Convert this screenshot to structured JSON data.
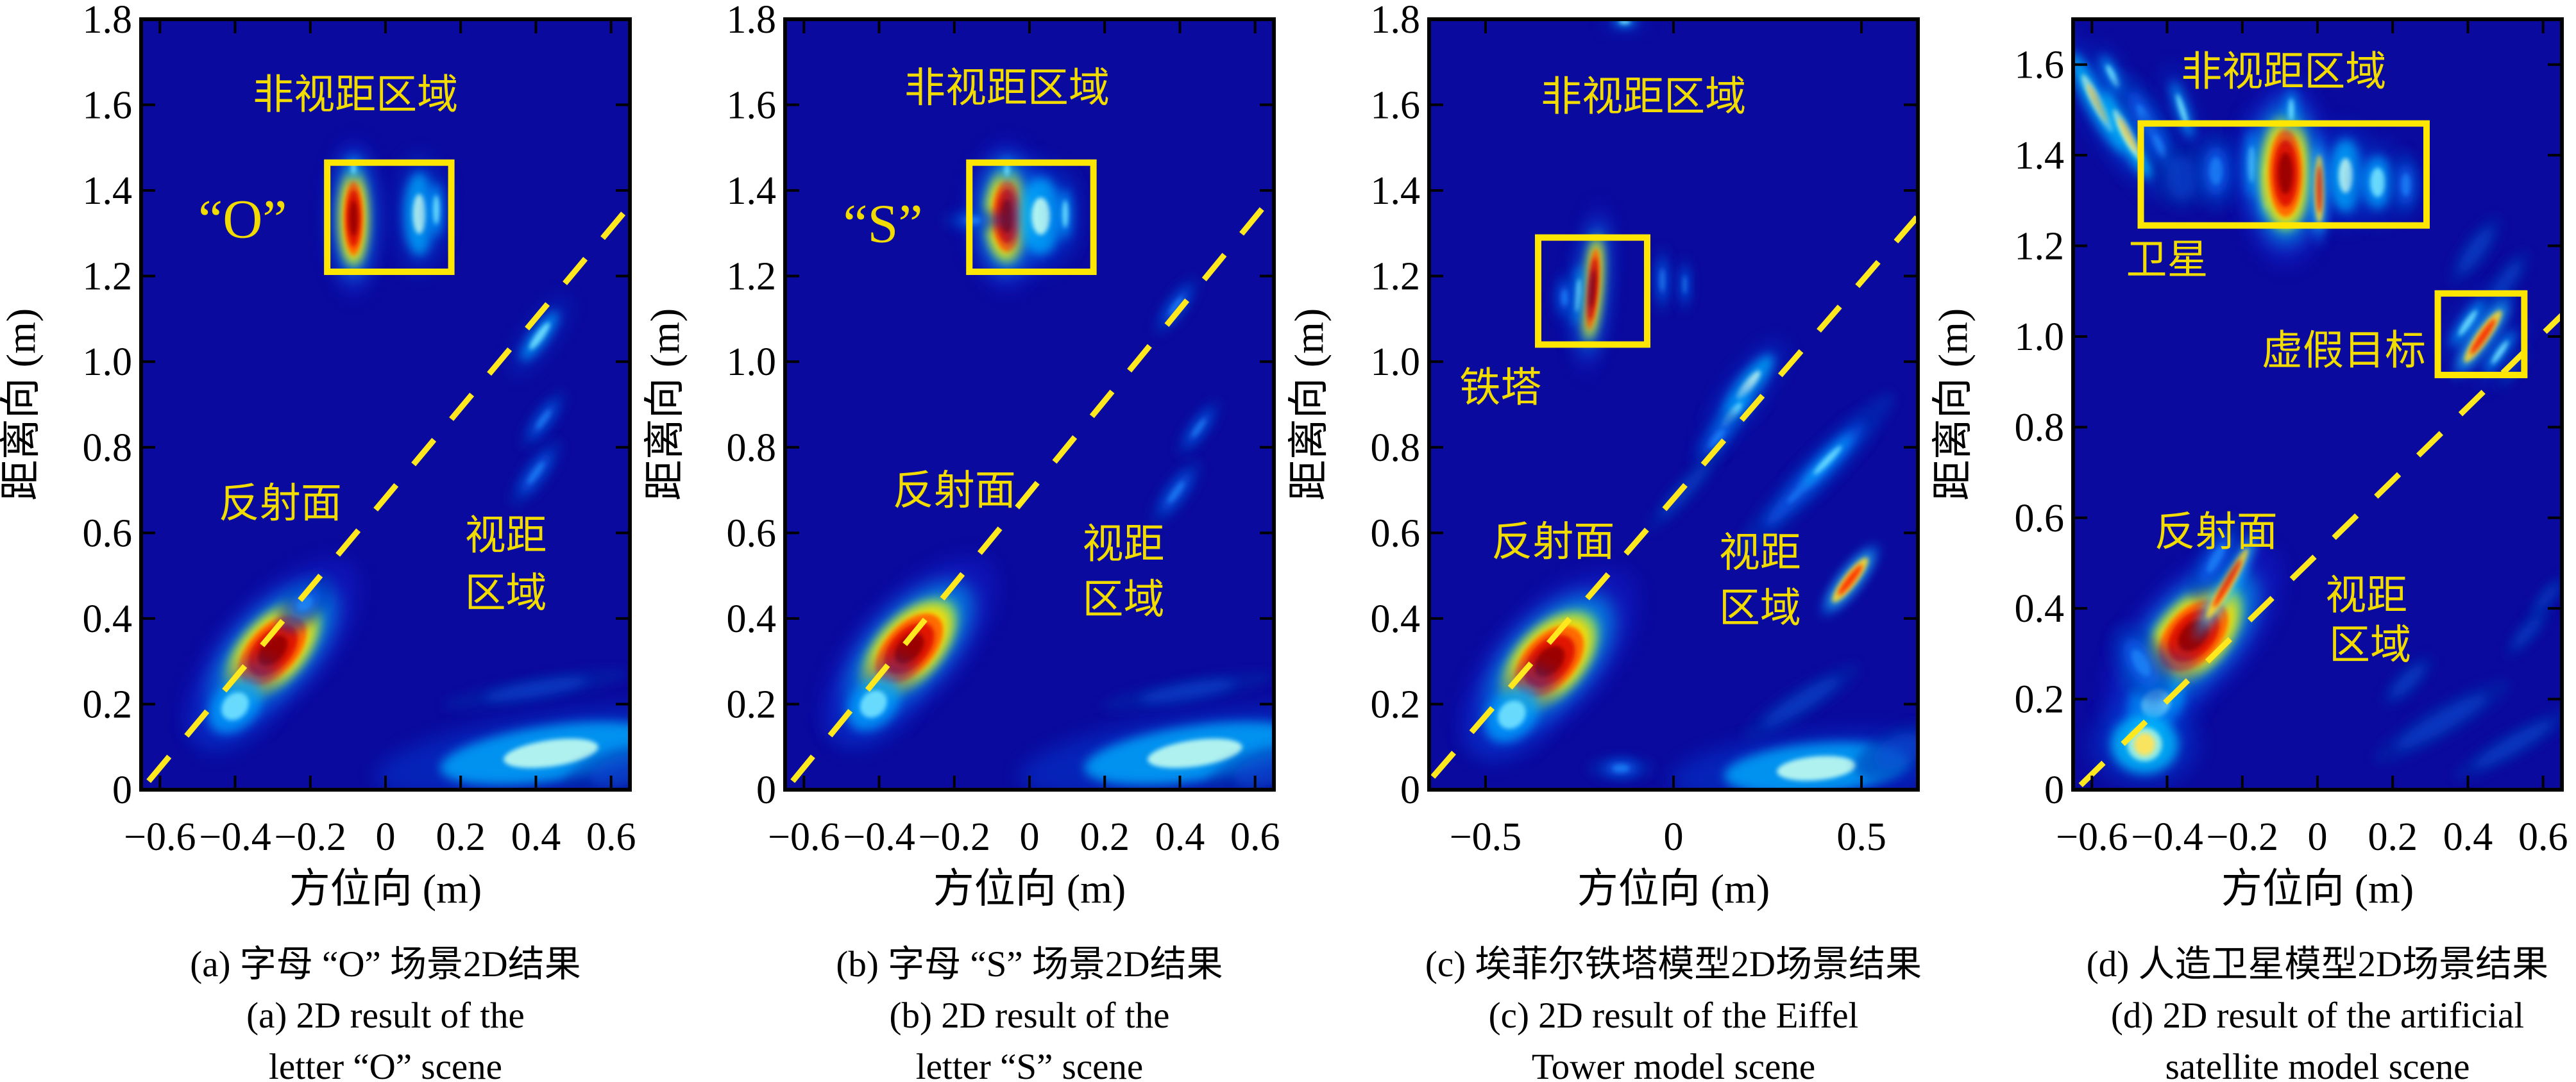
{
  "chart_data": {
    "type": "heatmap",
    "colormap": "jet",
    "title": "",
    "xlabel": "方位向 (m)",
    "ylabel": "距离向 (m)",
    "grid": false,
    "legend": false,
    "background_color": "#0A0A9E",
    "annotation_color": "#F2DC00",
    "line_color": "#FFE81E",
    "box_color": "#FFE600",
    "panels": [
      {
        "id": "a",
        "caption_zh": "(a) 字母 “O” 场景2D结果",
        "caption_en": [
          "(a) 2D result of the",
          "letter “O” scene"
        ],
        "xlim": [
          -0.65,
          0.65
        ],
        "ylim": [
          0,
          1.8
        ],
        "x_ticks": [
          -0.6,
          -0.4,
          -0.2,
          0,
          0.2,
          0.4,
          0.6
        ],
        "x_tick_labels": [
          "−0.6",
          "−0.4",
          "−0.2",
          "0",
          "0.2",
          "0.4",
          "0.6"
        ],
        "y_ticks": [
          0,
          0.2,
          0.4,
          0.6,
          0.8,
          1.0,
          1.2,
          1.4,
          1.6,
          1.8
        ],
        "y_tick_labels": [
          "0",
          "0.2",
          "0.4",
          "0.6",
          "0.8",
          "1.0",
          "1.2",
          "1.4",
          "1.6",
          "1.8"
        ],
        "reflector_line": {
          "x1": -0.63,
          "y1": 0.02,
          "x2": 0.655,
          "y2": 1.37
        },
        "target_boxes": [
          {
            "x": -0.155,
            "y": 1.21,
            "w": 0.33,
            "h": 0.255
          }
        ],
        "labels": [
          {
            "text": "非视距区域",
            "x": -0.08,
            "y": 1.625,
            "size": 64
          },
          {
            "text": "“O”",
            "x": -0.38,
            "y": 1.335,
            "size": 86
          },
          {
            "text": "反射面",
            "x": -0.28,
            "y": 0.67,
            "size": 64
          },
          {
            "text": "视距",
            "x": 0.32,
            "y": 0.595,
            "size": 64
          },
          {
            "text": "区域",
            "x": 0.32,
            "y": 0.46,
            "size": 64
          }
        ],
        "blobs": [
          [
            "hot",
            -0.3,
            0.325,
            0.115,
            0.058,
            -47
          ],
          [
            "cyan",
            -0.4,
            0.195,
            0.07,
            0.046,
            -47
          ],
          [
            "blue",
            -0.215,
            0.435,
            0.048,
            0.028,
            -47
          ],
          [
            "hot",
            -0.085,
            1.335,
            0.026,
            0.09,
            0
          ],
          [
            "lightcyan",
            0.09,
            1.345,
            0.028,
            0.075,
            0
          ],
          [
            "cyan",
            0.135,
            1.355,
            0.014,
            0.055,
            0
          ],
          [
            "cyan",
            -0.085,
            1.452,
            0.011,
            0.024,
            0
          ],
          [
            "cyan",
            0.41,
            1.06,
            0.018,
            0.062,
            36
          ],
          [
            "blue",
            0.42,
            0.865,
            0.016,
            0.05,
            36
          ],
          [
            "blue",
            0.4,
            0.74,
            0.018,
            0.058,
            36
          ],
          [
            "faint",
            0.4,
            0.235,
            0.14,
            0.018,
            -10
          ],
          [
            "lightcyan",
            0.44,
            0.085,
            0.205,
            0.05,
            -8
          ],
          [
            "faint",
            0.63,
            0.045,
            0.09,
            0.034,
            -15
          ]
        ]
      },
      {
        "id": "b",
        "caption_zh": "(b) 字母 “S” 场景2D结果",
        "caption_en": [
          "(b) 2D result of the",
          "letter “S” scene"
        ],
        "xlim": [
          -0.65,
          0.65
        ],
        "ylim": [
          0,
          1.8
        ],
        "x_ticks": [
          -0.6,
          -0.4,
          -0.2,
          0,
          0.2,
          0.4,
          0.6
        ],
        "x_tick_labels": [
          "−0.6",
          "−0.4",
          "−0.2",
          "0",
          "0.2",
          "0.4",
          "0.6"
        ],
        "y_ticks": [
          0,
          0.2,
          0.4,
          0.6,
          0.8,
          1.0,
          1.2,
          1.4,
          1.6,
          1.8
        ],
        "y_tick_labels": [
          "0",
          "0.2",
          "0.4",
          "0.6",
          "0.8",
          "1.0",
          "1.2",
          "1.4",
          "1.6",
          "1.8"
        ],
        "reflector_line": {
          "x1": -0.63,
          "y1": 0.02,
          "x2": 0.64,
          "y2": 1.38
        },
        "target_boxes": [
          {
            "x": -0.16,
            "y": 1.21,
            "w": 0.33,
            "h": 0.255
          }
        ],
        "labels": [
          {
            "text": "非视距区域",
            "x": -0.06,
            "y": 1.64,
            "size": 64
          },
          {
            "text": "“S”",
            "x": -0.39,
            "y": 1.325,
            "size": 86
          },
          {
            "text": "反射面",
            "x": -0.2,
            "y": 0.7,
            "size": 64
          },
          {
            "text": "视距",
            "x": 0.25,
            "y": 0.575,
            "size": 64
          },
          {
            "text": "区域",
            "x": 0.25,
            "y": 0.445,
            "size": 64
          }
        ],
        "blobs": [
          [
            "hot",
            -0.32,
            0.33,
            0.115,
            0.058,
            -47
          ],
          [
            "cyan",
            -0.415,
            0.2,
            0.068,
            0.046,
            -47
          ],
          [
            "hot",
            -0.06,
            1.34,
            0.04,
            0.086,
            0
          ],
          [
            "lightcyan",
            0.03,
            1.34,
            0.04,
            0.07,
            0
          ],
          [
            "cyan",
            0.095,
            1.345,
            0.013,
            0.052,
            0
          ],
          [
            "blue",
            -0.15,
            1.33,
            0.042,
            0.016,
            0
          ],
          [
            "cyan",
            -0.06,
            1.448,
            0.011,
            0.024,
            0
          ],
          [
            "blue",
            0.39,
            1.13,
            0.016,
            0.05,
            36
          ],
          [
            "blue",
            0.45,
            0.845,
            0.015,
            0.048,
            36
          ],
          [
            "blue",
            0.39,
            0.695,
            0.018,
            0.056,
            36
          ],
          [
            "faint",
            0.42,
            0.23,
            0.13,
            0.018,
            -10
          ],
          [
            "lightcyan",
            0.44,
            0.085,
            0.205,
            0.05,
            -8
          ],
          [
            "faint",
            0.63,
            0.045,
            0.09,
            0.034,
            -15
          ]
        ]
      },
      {
        "id": "c",
        "caption_zh": "(c) 埃菲尔铁塔模型2D场景结果",
        "caption_en": [
          "(c) 2D result of the Eiffel",
          "Tower model scene"
        ],
        "xlim": [
          -0.65,
          0.65
        ],
        "ylim": [
          0,
          1.8
        ],
        "x_ticks": [
          -0.5,
          0,
          0.5
        ],
        "x_tick_labels": [
          "−0.5",
          "0",
          "0.5"
        ],
        "y_ticks": [
          0,
          0.2,
          0.4,
          0.6,
          0.8,
          1.0,
          1.2,
          1.4,
          1.6,
          1.8
        ],
        "y_tick_labels": [
          "0",
          "0.2",
          "0.4",
          "0.6",
          "0.8",
          "1.0",
          "1.2",
          "1.4",
          "1.6",
          "1.8"
        ],
        "reflector_line": {
          "x1": -0.64,
          "y1": 0.03,
          "x2": 0.66,
          "y2": 1.35
        },
        "target_boxes": [
          {
            "x": -0.36,
            "y": 1.04,
            "w": 0.29,
            "h": 0.25
          }
        ],
        "labels": [
          {
            "text": "非视距区域",
            "x": -0.08,
            "y": 1.62,
            "size": 64
          },
          {
            "text": "铁塔",
            "x": -0.46,
            "y": 0.94,
            "size": 64
          },
          {
            "text": "反射面",
            "x": -0.32,
            "y": 0.58,
            "size": 64
          },
          {
            "text": "视距",
            "x": 0.23,
            "y": 0.555,
            "size": 64
          },
          {
            "text": "区域",
            "x": 0.23,
            "y": 0.425,
            "size": 64
          }
        ],
        "blobs": [
          [
            "hot",
            -0.33,
            0.3,
            0.115,
            0.062,
            -47
          ],
          [
            "cyan",
            -0.43,
            0.175,
            0.07,
            0.048,
            -47
          ],
          [
            "hot",
            -0.215,
            1.17,
            0.016,
            0.098,
            5
          ],
          [
            "cyan",
            -0.255,
            1.155,
            0.012,
            0.062,
            5
          ],
          [
            "blue",
            -0.29,
            1.15,
            0.016,
            0.036,
            0
          ],
          [
            "blue",
            -0.03,
            1.19,
            0.013,
            0.048,
            0
          ],
          [
            "blue",
            0.03,
            1.18,
            0.01,
            0.04,
            0
          ],
          [
            "cyan",
            -0.13,
            1.795,
            0.026,
            0.011,
            0
          ],
          [
            "lightcyan",
            0.2,
            0.945,
            0.02,
            0.068,
            38
          ],
          [
            "cyan",
            0.155,
            0.875,
            0.018,
            0.058,
            38
          ],
          [
            "blue",
            0.115,
            0.82,
            0.02,
            0.05,
            38
          ],
          [
            "faint",
            0.03,
            0.7,
            0.016,
            0.085,
            42
          ],
          [
            "blue",
            0.375,
            0.735,
            0.026,
            0.165,
            44
          ],
          [
            "cyan",
            0.41,
            0.77,
            0.014,
            0.075,
            44
          ],
          [
            "warm",
            0.47,
            0.49,
            0.016,
            0.062,
            38
          ],
          [
            "faint",
            0.34,
            0.205,
            0.022,
            0.105,
            58
          ],
          [
            "lightcyan",
            0.38,
            0.05,
            0.17,
            0.045,
            -5
          ],
          [
            "faint",
            0.6,
            0.09,
            0.07,
            0.035,
            -25
          ],
          [
            "blue",
            -0.14,
            0.05,
            0.045,
            0.018,
            0
          ]
        ]
      },
      {
        "id": "d",
        "caption_zh": "(d) 人造卫星模型2D场景结果",
        "caption_en": [
          "(d) 2D result of the artificial",
          "satellite model scene"
        ],
        "xlim": [
          -0.65,
          0.65
        ],
        "ylim": [
          0,
          1.7
        ],
        "x_ticks": [
          -0.6,
          -0.4,
          -0.2,
          0,
          0.2,
          0.4,
          0.6
        ],
        "x_tick_labels": [
          "−0.6",
          "−0.4",
          "−0.2",
          "0",
          "0.2",
          "0.4",
          "0.6"
        ],
        "y_ticks": [
          0,
          0.2,
          0.4,
          0.6,
          0.8,
          1.0,
          1.2,
          1.4,
          1.6
        ],
        "y_tick_labels": [
          "0",
          "0.2",
          "0.4",
          "0.6",
          "0.8",
          "1.0",
          "1.2",
          "1.4",
          "1.6"
        ],
        "reflector_line": {
          "x1": -0.63,
          "y1": 0.01,
          "x2": 0.66,
          "y2": 1.055
        },
        "target_boxes": [
          {
            "x": -0.47,
            "y": 1.245,
            "w": 0.76,
            "h": 0.225
          },
          {
            "x": 0.32,
            "y": 0.915,
            "w": 0.23,
            "h": 0.18
          }
        ],
        "labels": [
          {
            "text": "非视距区域",
            "x": -0.09,
            "y": 1.585,
            "size": 64
          },
          {
            "text": "卫星",
            "x": -0.4,
            "y": 1.17,
            "size": 64
          },
          {
            "text": "虚假目标",
            "x": 0.07,
            "y": 0.97,
            "size": 64
          },
          {
            "text": "反射面",
            "x": -0.27,
            "y": 0.57,
            "size": 64
          },
          {
            "text": "视距",
            "x": 0.13,
            "y": 0.43,
            "size": 64
          },
          {
            "text": "区域",
            "x": 0.14,
            "y": 0.32,
            "size": 64
          }
        ],
        "blobs": [
          [
            "warmcyan",
            -0.585,
            1.515,
            0.02,
            0.095,
            -28
          ],
          [
            "warmcyan",
            -0.505,
            1.445,
            0.02,
            0.085,
            -28
          ],
          [
            "cyan",
            -0.545,
            1.575,
            0.014,
            0.045,
            -28
          ],
          [
            "blue",
            -0.455,
            1.475,
            0.028,
            0.075,
            -28
          ],
          [
            "cyan",
            -0.36,
            1.5,
            0.013,
            0.06,
            -18
          ],
          [
            "blue",
            -0.42,
            1.42,
            0.018,
            0.05,
            -25
          ],
          [
            "faint",
            -0.36,
            1.35,
            0.042,
            0.048,
            0
          ],
          [
            "blue",
            -0.27,
            1.365,
            0.035,
            0.055,
            0
          ],
          [
            "cyan",
            -0.175,
            1.38,
            0.016,
            0.065,
            0
          ],
          [
            "warm",
            -0.135,
            1.33,
            0.01,
            0.048,
            0
          ],
          [
            "hot",
            -0.085,
            1.36,
            0.046,
            0.1,
            0
          ],
          [
            "warm",
            0.005,
            1.325,
            0.012,
            0.072,
            0
          ],
          [
            "lightcyan",
            0.075,
            1.355,
            0.03,
            0.062,
            0
          ],
          [
            "cyan",
            0.16,
            1.34,
            0.034,
            0.052,
            0
          ],
          [
            "blue",
            0.235,
            1.335,
            0.024,
            0.046,
            0
          ],
          [
            "cyan",
            -0.07,
            1.5,
            0.012,
            0.04,
            0
          ],
          [
            "faint",
            0.42,
            1.19,
            0.02,
            0.06,
            35
          ],
          [
            "faint",
            0.5,
            1.12,
            0.018,
            0.055,
            35
          ],
          [
            "cyan",
            0.4,
            1.03,
            0.015,
            0.055,
            35
          ],
          [
            "warm",
            0.44,
            1.0,
            0.016,
            0.066,
            35
          ],
          [
            "cyan",
            0.485,
            0.965,
            0.013,
            0.05,
            35
          ],
          [
            "faint",
            0.52,
            0.93,
            0.01,
            0.038,
            35
          ],
          [
            "hot",
            -0.33,
            0.34,
            0.115,
            0.06,
            -47
          ],
          [
            "cyan",
            -0.43,
            0.19,
            0.072,
            0.048,
            -47
          ],
          [
            "warm",
            -0.24,
            0.455,
            0.014,
            0.085,
            30
          ],
          [
            "blue",
            -0.27,
            0.51,
            0.026,
            0.065,
            30
          ],
          [
            "blue",
            -0.47,
            0.28,
            0.036,
            0.06,
            -30
          ],
          [
            "warmcyan",
            -0.46,
            0.1,
            0.062,
            0.05,
            0
          ],
          [
            "faint",
            0.33,
            0.15,
            0.025,
            0.115,
            60
          ],
          [
            "faint",
            0.52,
            0.1,
            0.02,
            0.1,
            60
          ],
          [
            "faint",
            0.24,
            0.24,
            0.018,
            0.05,
            45
          ],
          [
            "faint",
            0.56,
            0.35,
            0.014,
            0.048,
            40
          ],
          [
            "faint",
            0.61,
            0.425,
            0.012,
            0.04,
            40
          ]
        ]
      }
    ]
  }
}
